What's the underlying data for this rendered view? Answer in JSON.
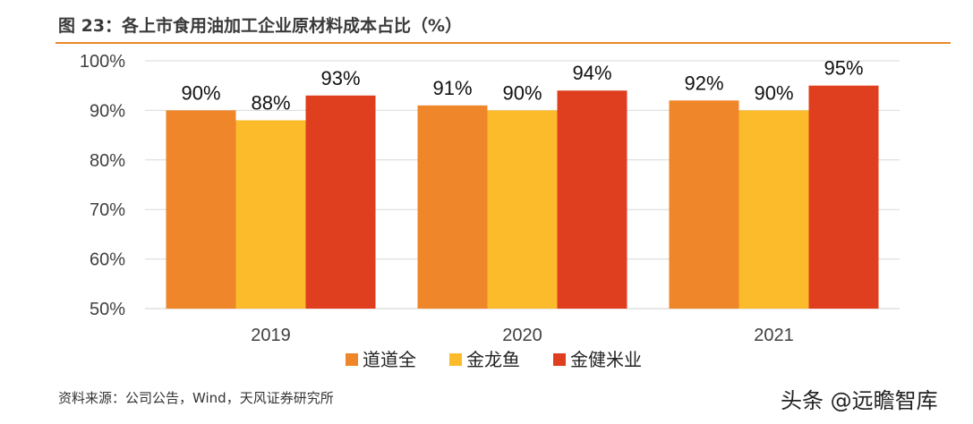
{
  "title": "图 23：各上市食用油加工企业原材料成本占比（%）",
  "source": "资料来源：公司公告，Wind，天风证券研究所",
  "watermark": "头条 @远瞻智库",
  "chart_data": {
    "type": "bar",
    "categories": [
      "2019",
      "2020",
      "2021"
    ],
    "series": [
      {
        "name": "道道全",
        "color": "#f0862a",
        "values": [
          90,
          91,
          92
        ],
        "labels": [
          "90%",
          "91%",
          "92%"
        ]
      },
      {
        "name": "金龙鱼",
        "color": "#fbbb2b",
        "values": [
          88,
          90,
          90
        ],
        "labels": [
          "88%",
          "90%",
          "90%"
        ]
      },
      {
        "name": "金健米业",
        "color": "#df3f1f",
        "values": [
          93,
          94,
          95
        ],
        "labels": [
          "93%",
          "94%",
          "95%"
        ]
      }
    ],
    "ylim": [
      50,
      100
    ],
    "yticks": [
      "50%",
      "60%",
      "70%",
      "80%",
      "90%",
      "100%"
    ],
    "ytick_values": [
      50,
      60,
      70,
      80,
      90,
      100
    ],
    "grid": true,
    "legend": "bottom"
  }
}
